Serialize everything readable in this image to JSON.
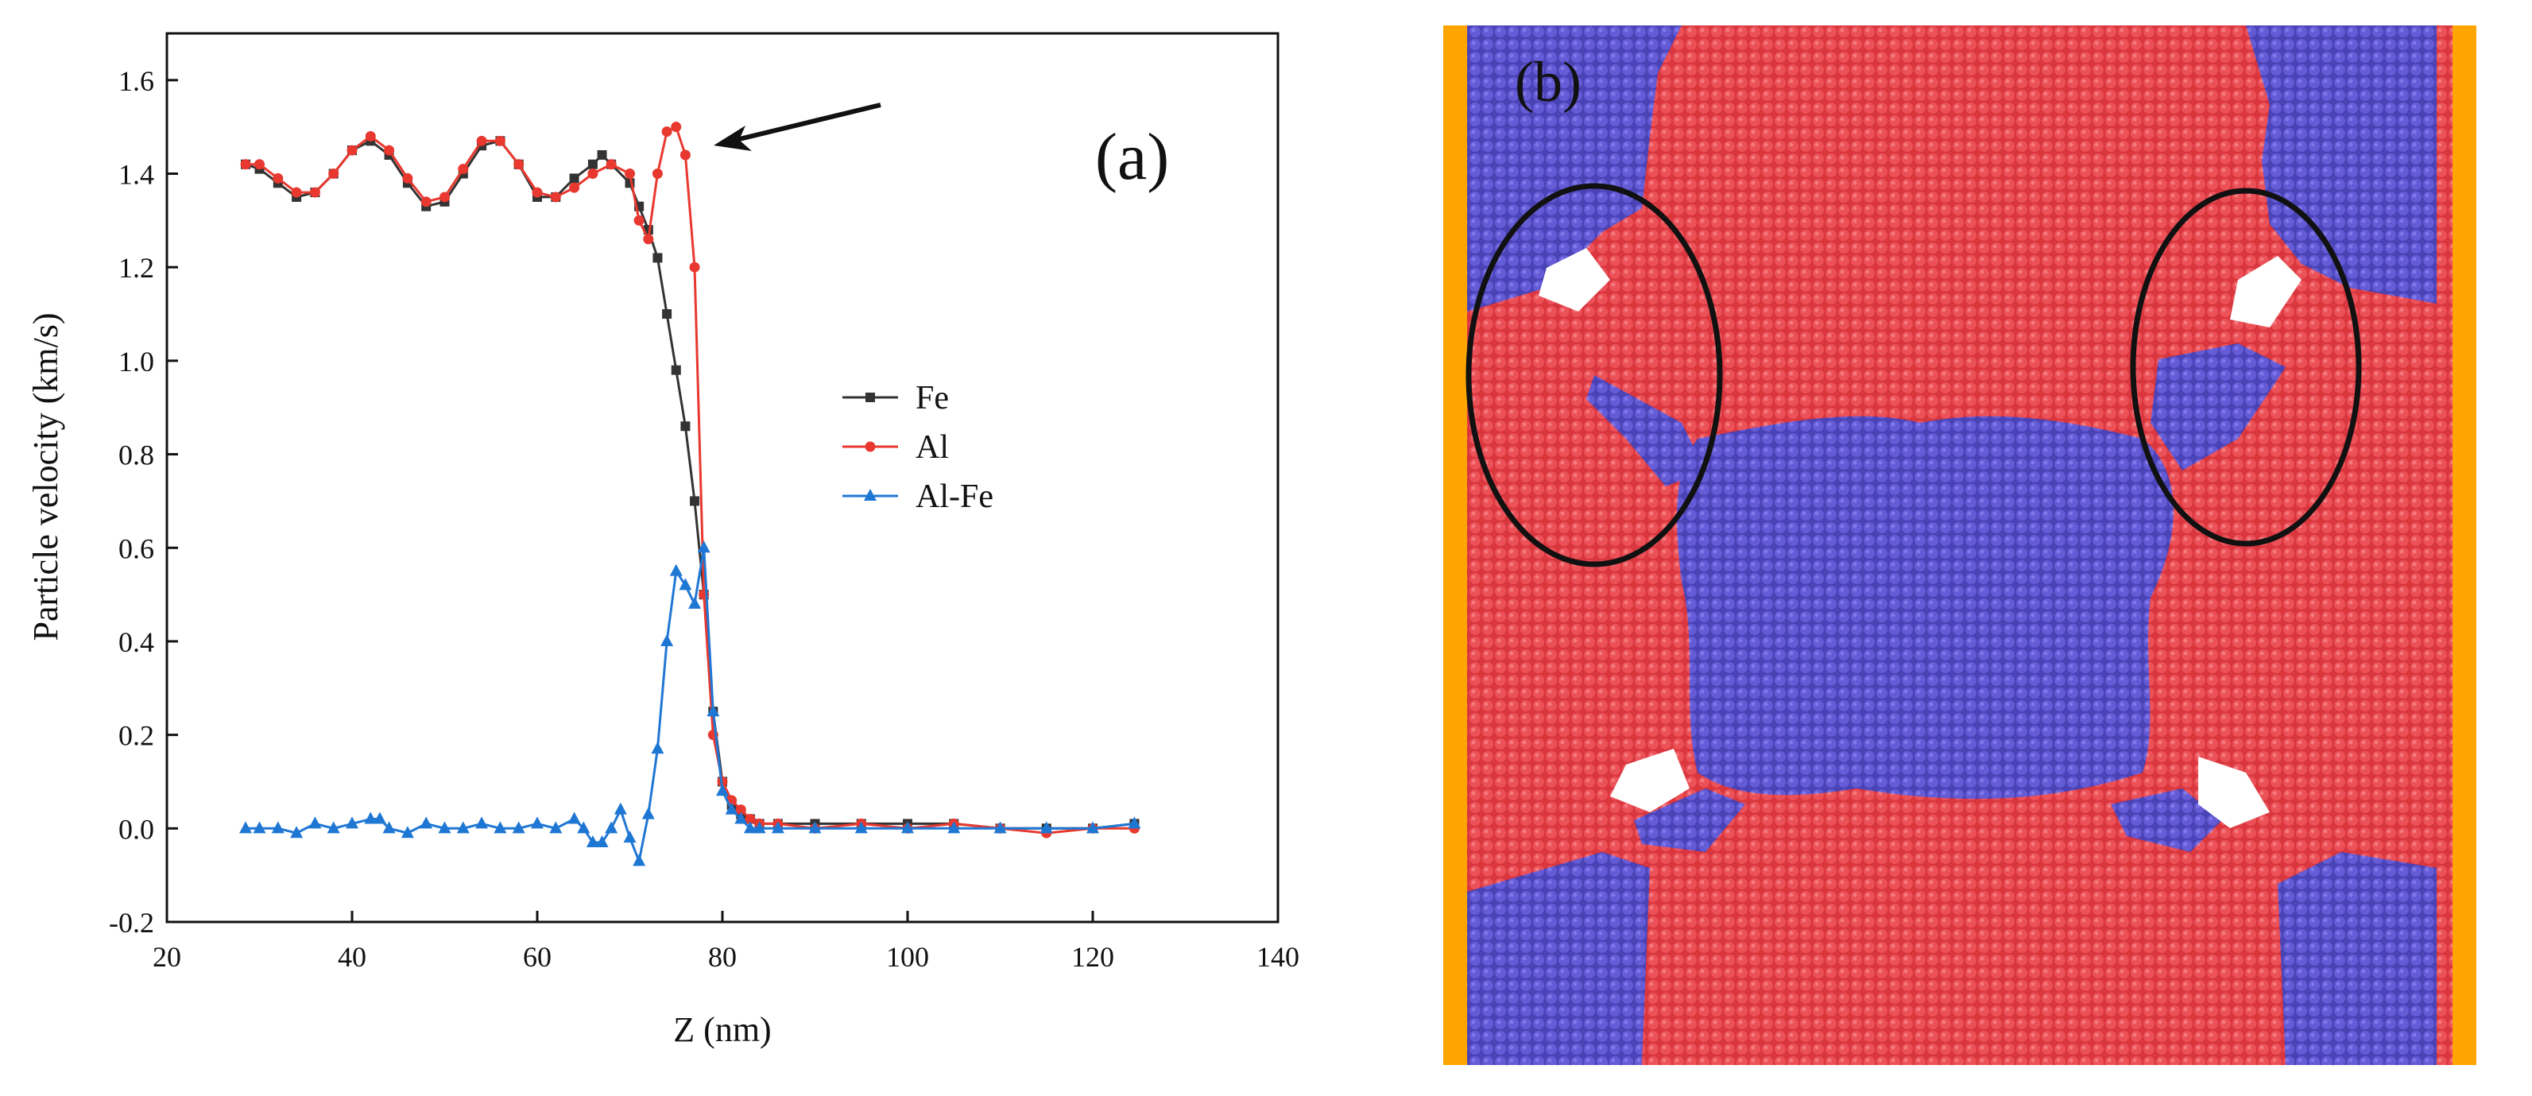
{
  "chart_data": [
    {
      "panel": "(a)",
      "type": "line",
      "xlabel": "Z (nm)",
      "ylabel": "Particle velocity (km/s)",
      "xlim": [
        20,
        140
      ],
      "ylim": [
        -0.2,
        1.7
      ],
      "xticks": [
        20,
        40,
        60,
        80,
        100,
        120,
        140
      ],
      "yticks": [
        -0.2,
        0.0,
        0.2,
        0.4,
        0.6,
        0.8,
        1.0,
        1.2,
        1.4,
        1.6
      ],
      "xtick_labels": [
        "20",
        "40",
        "60",
        "80",
        "100",
        "120",
        "140"
      ],
      "ytick_labels": [
        "-0.2",
        "0.0",
        "0.2",
        "0.4",
        "0.6",
        "0.8",
        "1.0",
        "1.2",
        "1.4",
        "1.6"
      ],
      "legend_position": "center-right",
      "annotation": "arrow pointing to the Al velocity peak near Z = 75 nm",
      "series": [
        {
          "name": "Fe",
          "color": "#333333",
          "marker": "square",
          "x": [
            28.5,
            30,
            32,
            34,
            36,
            38,
            40,
            42,
            44,
            46,
            48,
            50,
            52,
            54,
            56,
            58,
            60,
            62,
            64,
            66,
            67,
            68,
            70,
            71,
            72,
            73,
            74,
            75,
            76,
            77,
            78,
            79,
            80,
            81,
            82,
            83,
            84,
            86,
            90,
            95,
            100,
            105,
            110,
            115,
            120,
            124.5
          ],
          "y": [
            1.42,
            1.41,
            1.38,
            1.35,
            1.36,
            1.4,
            1.45,
            1.47,
            1.44,
            1.38,
            1.33,
            1.34,
            1.4,
            1.46,
            1.47,
            1.42,
            1.35,
            1.35,
            1.39,
            1.42,
            1.44,
            1.42,
            1.38,
            1.33,
            1.28,
            1.22,
            1.1,
            0.98,
            0.86,
            0.7,
            0.5,
            0.25,
            0.1,
            0.05,
            0.03,
            0.02,
            0.01,
            0.01,
            0.01,
            0.01,
            0.01,
            0.01,
            0.0,
            0.0,
            0.0,
            0.01
          ]
        },
        {
          "name": "Al",
          "color": "#e8382f",
          "marker": "circle",
          "x": [
            28.5,
            30,
            32,
            34,
            36,
            38,
            40,
            42,
            44,
            46,
            48,
            50,
            52,
            54,
            56,
            58,
            60,
            62,
            64,
            66,
            68,
            70,
            71,
            72,
            73,
            74,
            75,
            76,
            77,
            78,
            79,
            80,
            81,
            82,
            83,
            84,
            86,
            90,
            95,
            100,
            105,
            110,
            115,
            120,
            124.5
          ],
          "y": [
            1.42,
            1.42,
            1.39,
            1.36,
            1.36,
            1.4,
            1.45,
            1.48,
            1.45,
            1.39,
            1.34,
            1.35,
            1.41,
            1.47,
            1.47,
            1.42,
            1.36,
            1.35,
            1.37,
            1.4,
            1.42,
            1.4,
            1.3,
            1.26,
            1.4,
            1.49,
            1.5,
            1.44,
            1.2,
            0.5,
            0.2,
            0.1,
            0.06,
            0.04,
            0.02,
            0.01,
            0.01,
            0.0,
            0.01,
            0.0,
            0.01,
            0.0,
            -0.01,
            0.0,
            0.0
          ]
        },
        {
          "name": "Al-Fe",
          "color": "#1f77d4",
          "marker": "triangle",
          "x": [
            28.5,
            30,
            32,
            34,
            36,
            38,
            40,
            42,
            43,
            44,
            46,
            48,
            50,
            52,
            54,
            56,
            58,
            60,
            62,
            64,
            65,
            66,
            67,
            68,
            69,
            70,
            71,
            72,
            73,
            74,
            75,
            76,
            77,
            78,
            79,
            80,
            81,
            82,
            83,
            84,
            86,
            90,
            95,
            100,
            105,
            110,
            115,
            120,
            124.5
          ],
          "y": [
            0.0,
            0.0,
            0.0,
            -0.01,
            0.01,
            0.0,
            0.01,
            0.02,
            0.02,
            0.0,
            -0.01,
            0.01,
            0.0,
            0.0,
            0.01,
            0.0,
            0.0,
            0.01,
            0.0,
            0.02,
            0.0,
            -0.03,
            -0.03,
            0.0,
            0.04,
            -0.02,
            -0.07,
            0.03,
            0.17,
            0.4,
            0.55,
            0.52,
            0.48,
            0.6,
            0.25,
            0.08,
            0.04,
            0.02,
            0.0,
            0.0,
            0.0,
            0.0,
            0.0,
            0.0,
            0.0,
            0.0,
            0.0,
            0.0,
            0.01
          ]
        }
      ]
    }
  ],
  "panel_b": {
    "tag": "(b)",
    "description_colors": {
      "red_phase": "#e8434a",
      "blue_phase": "#5b52c7",
      "frame": "#ffa500",
      "void": "#ffffff"
    }
  }
}
